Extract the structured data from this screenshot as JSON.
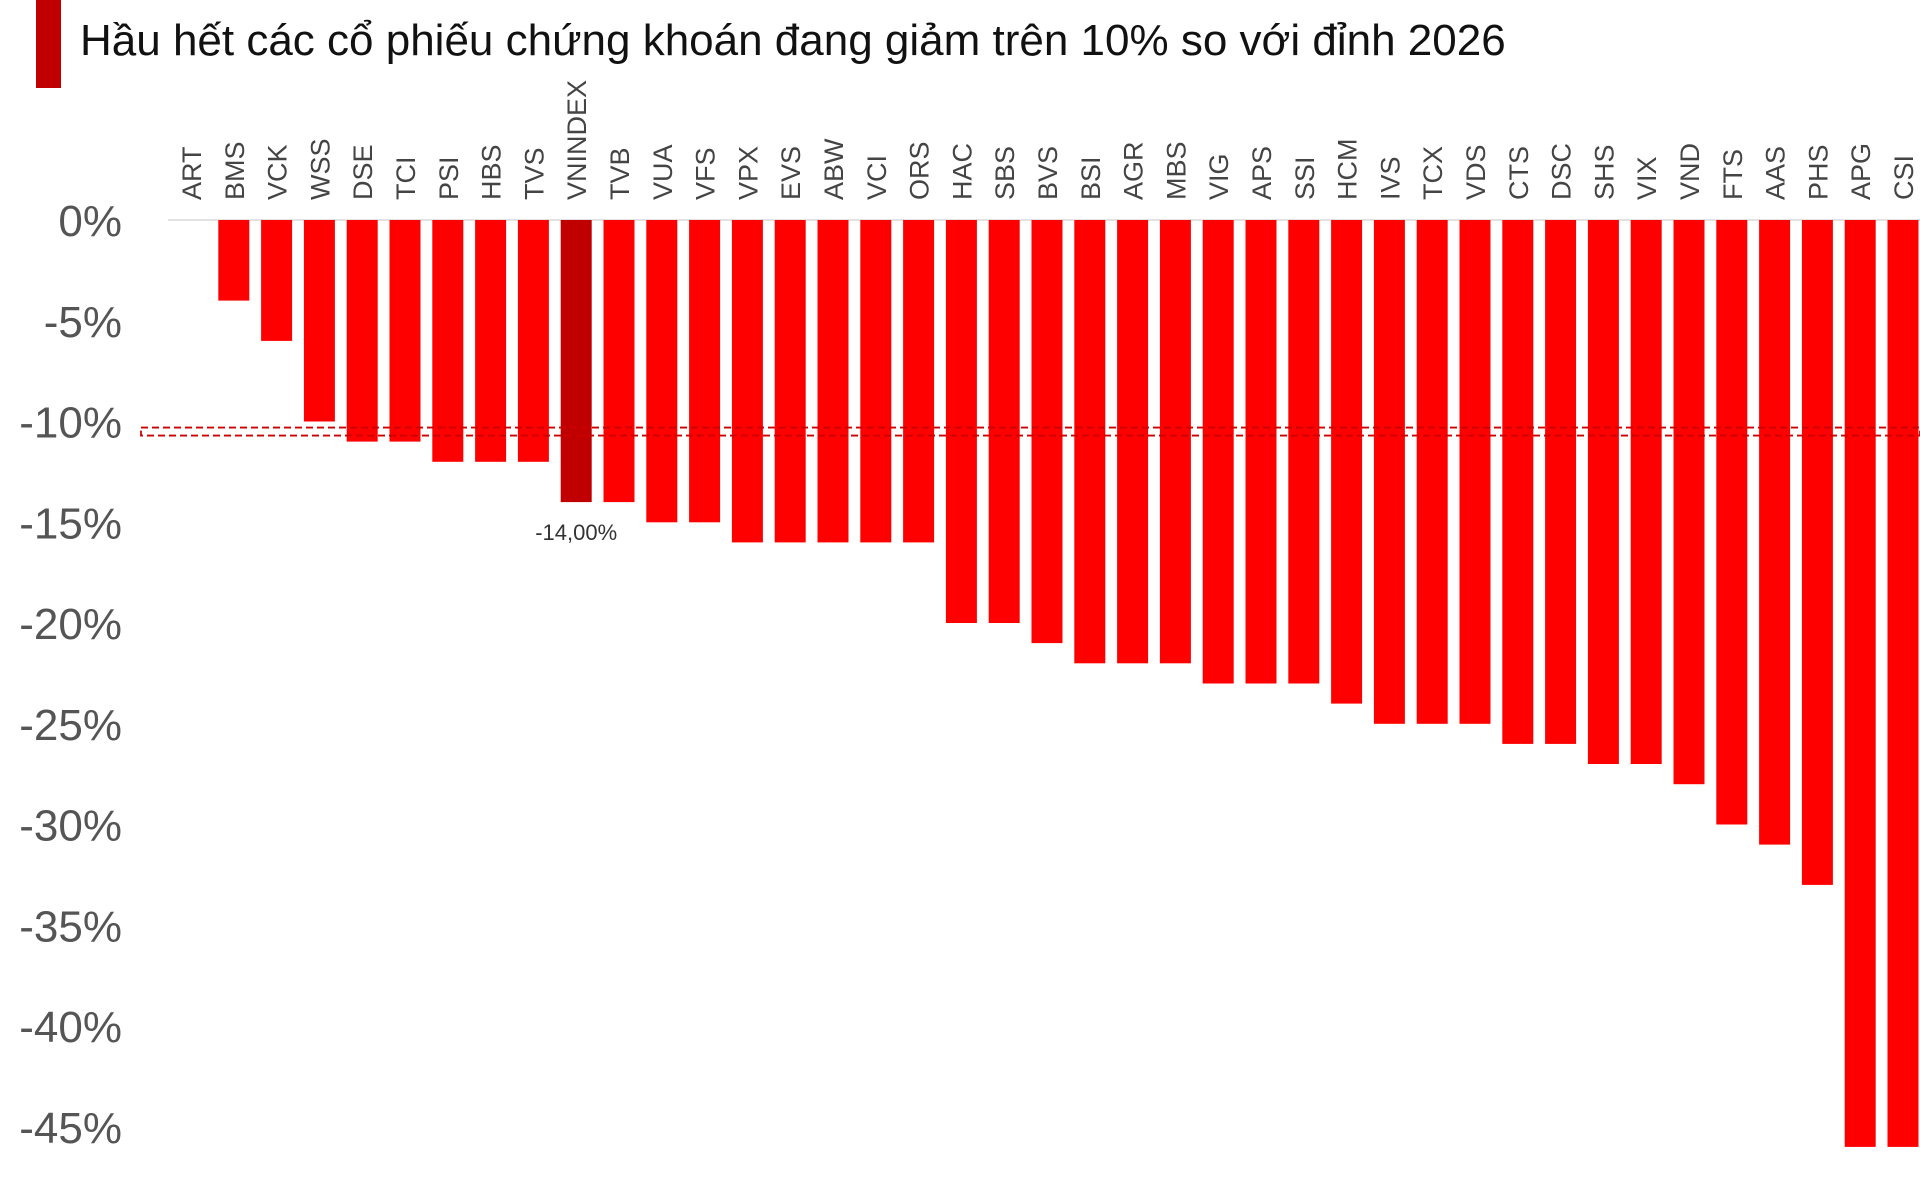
{
  "chart_data": {
    "type": "bar",
    "title": "Hầu hết các cổ phiếu chứng khoán đang giảm trên 10% so với đỉnh 2026",
    "xlabel": "",
    "ylabel": "",
    "ylim": [
      -46,
      0
    ],
    "yticks": [
      0,
      -5,
      -10,
      -15,
      -20,
      -25,
      -30,
      -35,
      -40,
      -45
    ],
    "ytick_labels": [
      "0%",
      "-5%",
      "-10%",
      "-15%",
      "-20%",
      "-25%",
      "-30%",
      "-35%",
      "-40%",
      "-45%"
    ],
    "categories": [
      "ART",
      "BMS",
      "VCK",
      "WSS",
      "DSE",
      "TCI",
      "PSI",
      "HBS",
      "TVS",
      "VNINDEX",
      "TVB",
      "VUA",
      "VFS",
      "VPX",
      "EVS",
      "ABW",
      "VCI",
      "ORS",
      "HAC",
      "SBS",
      "BVS",
      "BSI",
      "AGR",
      "MBS",
      "VIG",
      "APS",
      "SSI",
      "HCM",
      "IVS",
      "TCX",
      "VDS",
      "CTS",
      "DSC",
      "SHS",
      "VIX",
      "VND",
      "FTS",
      "AAS",
      "PHS",
      "APG",
      "CSI"
    ],
    "values": [
      0,
      -4,
      -6,
      -10,
      -11,
      -11,
      -12,
      -12,
      -12,
      -14,
      -14,
      -15,
      -15,
      -16,
      -16,
      -16,
      -16,
      -16,
      -20,
      -20,
      -21,
      -22,
      -22,
      -22,
      -23,
      -23,
      -23,
      -24,
      -25,
      -25,
      -25,
      -26,
      -26,
      -27,
      -27,
      -28,
      -30,
      -31,
      -33,
      -46,
      -46
    ],
    "highlight": {
      "category": "VNINDEX",
      "label": "-14,00%"
    },
    "reference_line": {
      "value": -10.5,
      "style": "dashed"
    },
    "grid": false,
    "legend": "none",
    "colors": {
      "bar": "#ff0000",
      "highlight": "#c00000",
      "reference": "#cc0000",
      "tick_text": "#555555",
      "category_text": "#444444",
      "title_bar": "#c00000"
    }
  }
}
